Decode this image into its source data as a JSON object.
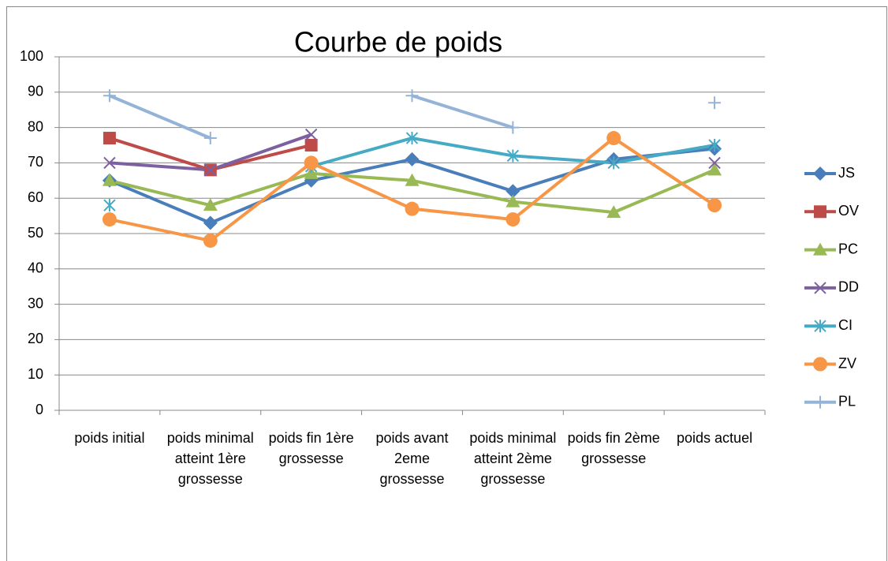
{
  "chart_data": {
    "type": "line",
    "title": "Courbe de poids",
    "categories": [
      "poids initial",
      "poids minimal atteint 1ère grossesse",
      "poids fin 1ère grossesse",
      "poids avant 2eme grossesse",
      "poids minimal atteint 2ème grossesse",
      "poids fin 2ème grossesse",
      "poids actuel"
    ],
    "series": [
      {
        "name": "JS",
        "color": "#4a7ebb",
        "marker": "diamond",
        "values": [
          65,
          53,
          65,
          71,
          62,
          71,
          74
        ]
      },
      {
        "name": "OV",
        "color": "#be4b48",
        "marker": "square",
        "values": [
          77,
          68,
          75,
          null,
          null,
          null,
          null
        ]
      },
      {
        "name": "PC",
        "color": "#98b954",
        "marker": "triangle",
        "values": [
          65,
          58,
          67,
          65,
          59,
          56,
          68
        ]
      },
      {
        "name": "DD",
        "color": "#7d60a0",
        "marker": "x",
        "values": [
          70,
          68,
          78,
          null,
          null,
          null,
          70
        ]
      },
      {
        "name": "CI",
        "color": "#46aac5",
        "marker": "star",
        "values": [
          58,
          null,
          69,
          77,
          72,
          70,
          75
        ]
      },
      {
        "name": "ZV",
        "color": "#f79646",
        "marker": "circle",
        "values": [
          54,
          48,
          70,
          57,
          54,
          77,
          58
        ]
      },
      {
        "name": "PL",
        "color": "#95b3d7",
        "marker": "plus",
        "values": [
          89,
          77,
          null,
          89,
          80,
          null,
          87
        ]
      }
    ],
    "ylim": [
      0,
      100
    ],
    "yticks": [
      0,
      10,
      20,
      30,
      40,
      50,
      60,
      70,
      80,
      90,
      100
    ],
    "grid": true,
    "legend": "right"
  }
}
